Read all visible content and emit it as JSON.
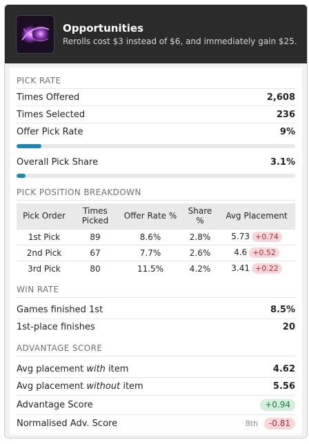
{
  "header": {
    "title": "Opportunities",
    "subtitle": "Rerolls cost $3 instead of $6, and immediately gain $25."
  },
  "pick_rate": {
    "heading": "PICK RATE",
    "times_offered_label": "Times Offered",
    "times_offered": "2,608",
    "times_selected_label": "Times Selected",
    "times_selected": "236",
    "offer_pick_rate_label": "Offer Pick Rate",
    "offer_pick_rate": "9%",
    "offer_pick_rate_fraction": 0.09,
    "overall_pick_share_label": "Overall Pick Share",
    "overall_pick_share": "3.1%",
    "overall_pick_share_fraction": 0.031
  },
  "breakdown": {
    "heading": "PICK POSITION BREAKDOWN",
    "columns": [
      "Pick Order",
      "Times Picked",
      "Offer Rate %",
      "Share %",
      "Avg Placement"
    ],
    "rows": [
      {
        "order": "1st Pick",
        "picked": "89",
        "offer_rate": "8.6%",
        "share": "2.8%",
        "avg": "5.73",
        "delta": "+0.74"
      },
      {
        "order": "2nd Pick",
        "picked": "67",
        "offer_rate": "7.7%",
        "share": "2.6%",
        "avg": "4.6",
        "delta": "+0.52"
      },
      {
        "order": "3rd Pick",
        "picked": "80",
        "offer_rate": "11.5%",
        "share": "4.2%",
        "avg": "3.41",
        "delta": "+0.22"
      }
    ]
  },
  "win_rate": {
    "heading": "WIN RATE",
    "games_first_label": "Games finished 1st",
    "games_first": "8.5%",
    "first_finishes_label": "1st-place finishes",
    "first_finishes": "20"
  },
  "advantage": {
    "heading": "ADVANTAGE SCORE",
    "with_label_pre": "Avg placement ",
    "with_label_em": "with",
    "with_label_post": " item",
    "with_value": "4.62",
    "without_label_pre": "Avg placement ",
    "without_label_em": "without",
    "without_label_post": " item",
    "without_value": "5.56",
    "score_label": "Advantage Score",
    "score_value": "+0.94",
    "norm_label": "Normalised Adv. Score",
    "norm_rank": "8th",
    "norm_value": "-0.81"
  },
  "colors": {
    "accent_bar": "#1c86b4",
    "header_bg": "#2b2b2b",
    "badge_red_bg": "#f8d7da",
    "badge_green_bg": "#d4eddc"
  },
  "icons": {
    "item": "purple-orb-icon"
  }
}
